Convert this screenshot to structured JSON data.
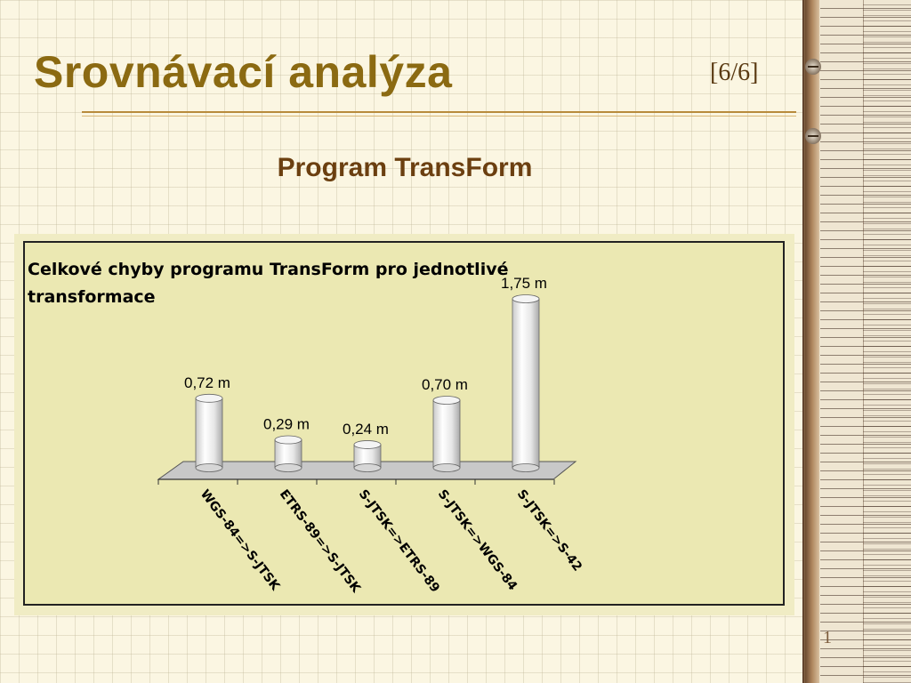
{
  "slide": {
    "title": "Srovnávací analýza",
    "page_indicator": "[6/6]",
    "subtitle": "Program TransForm",
    "corner_mark": "1"
  },
  "colors": {
    "title": "#8b6a12",
    "subtitle": "#6b3f10",
    "chart_area": "#ebe8b2",
    "cylinder": "#f2f2f2",
    "floor": "#c8c8c8"
  },
  "chart_data": {
    "type": "bar",
    "style": "3d-cylinder",
    "title": "Celkové chyby programu TransForm pro jednotlivé transformace",
    "categories": [
      "WGS-84=>S-JTSK",
      "ETRS-89=>S-JTSK",
      "S-JTSK=>ETRS-89",
      "S-JTSK=>WGS-84",
      "S-JTSK=>S-42"
    ],
    "values": [
      0.72,
      0.29,
      0.24,
      0.7,
      1.75
    ],
    "data_labels": [
      "0,72 m",
      "0,29 m",
      "0,24 m",
      "0,70 m",
      "1,75 m"
    ],
    "unit": "m",
    "ylim": [
      0,
      1.75
    ],
    "grid": false,
    "legend": "none"
  }
}
